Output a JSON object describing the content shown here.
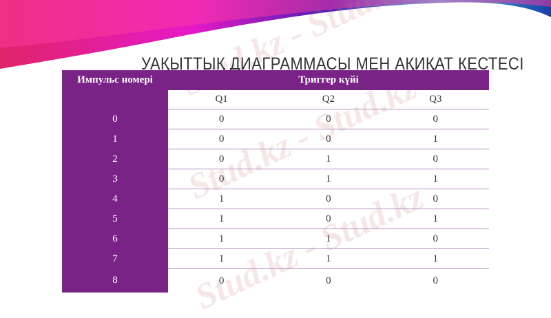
{
  "title": "УАҚЫТТЫҚ ДИАГРАММАСЫ МЕН АҚИҚАТ КЕСТЕСІ",
  "table": {
    "col_pulse": "Импульс номері",
    "col_trigger": "Триггер күйі",
    "sub": [
      "Q1",
      "Q2",
      "Q3"
    ],
    "rows": [
      [
        "0",
        "0",
        "0",
        "0"
      ],
      [
        "1",
        "0",
        "0",
        "1"
      ],
      [
        "2",
        "0",
        "1",
        "0"
      ],
      [
        "3",
        "0",
        "1",
        "1"
      ],
      [
        "4",
        "1",
        "0",
        "0"
      ],
      [
        "5",
        "1",
        "0",
        "1"
      ],
      [
        "6",
        "1",
        "1",
        "0"
      ],
      [
        "7",
        "1",
        "1",
        "1"
      ],
      [
        "8",
        "0",
        "0",
        "0"
      ]
    ]
  },
  "watermark": "Stud.kz - Stud.kz",
  "colors": {
    "header": "#7a2387"
  }
}
